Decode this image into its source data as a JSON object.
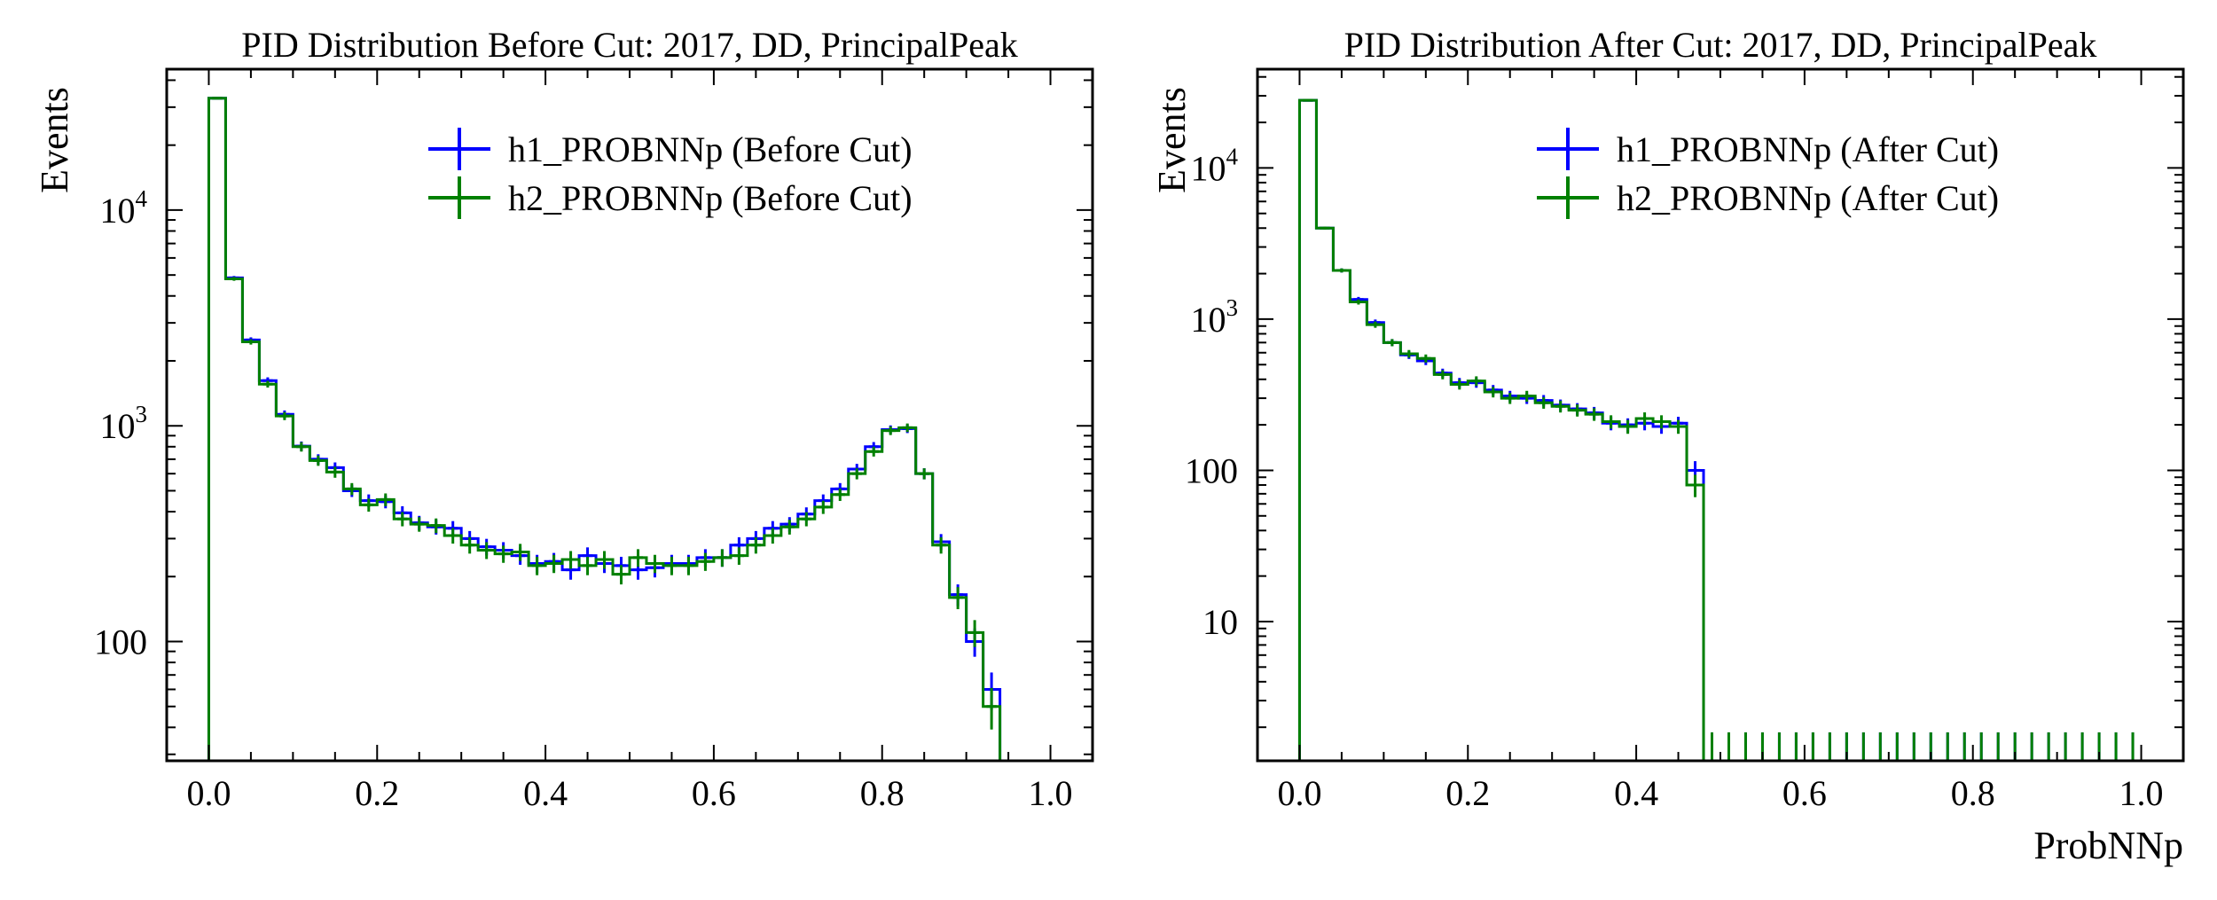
{
  "chart_data": [
    {
      "type": "histogram",
      "title": "PID Distribution Before Cut: 2017, DD, PrincipalPeak",
      "xlabel": "",
      "ylabel": "Events",
      "xlim": [
        -0.05,
        1.05
      ],
      "ylim": [
        28,
        45000
      ],
      "yscale": "log",
      "xticks": [
        "0.0",
        "0.2",
        "0.4",
        "0.6",
        "0.8",
        "1.0"
      ],
      "yticks": [
        {
          "base": "10",
          "exp": "4",
          "value": 10000
        },
        {
          "base": "10",
          "exp": "3",
          "value": 1000
        },
        {
          "base": "100",
          "exp": "",
          "value": 100
        }
      ],
      "legend_position": "top-right",
      "bin_edges_start": 0.0,
      "bin_width": 0.02,
      "series": [
        {
          "name": "h1_PROBNNp (Before Cut)",
          "color": "#0000ff",
          "values": [
            33000,
            4850,
            2500,
            1620,
            1130,
            805,
            700,
            640,
            500,
            450,
            445,
            395,
            355,
            340,
            335,
            300,
            275,
            265,
            250,
            230,
            235,
            215,
            250,
            230,
            225,
            215,
            220,
            230,
            230,
            245,
            245,
            280,
            300,
            335,
            350,
            390,
            450,
            510,
            630,
            800,
            960,
            970,
            600,
            290,
            165,
            100,
            60
          ]
        },
        {
          "name": "h2_PROBNNp (Before Cut)",
          "color": "#008000",
          "values": [
            33000,
            4800,
            2450,
            1560,
            1110,
            800,
            690,
            610,
            510,
            430,
            455,
            370,
            350,
            345,
            310,
            280,
            265,
            255,
            260,
            225,
            230,
            240,
            225,
            240,
            205,
            245,
            230,
            225,
            225,
            235,
            245,
            250,
            280,
            310,
            340,
            370,
            420,
            480,
            600,
            760,
            950,
            980,
            600,
            280,
            160,
            110,
            50
          ]
        }
      ]
    },
    {
      "type": "histogram",
      "title": "PID Distribution After Cut: 2017, DD, PrincipalPeak",
      "xlabel": "ProbNNp",
      "ylabel": "Events",
      "xlim": [
        -0.05,
        1.05
      ],
      "ylim": [
        1.2,
        45000
      ],
      "yscale": "log",
      "xticks": [
        "0.0",
        "0.2",
        "0.4",
        "0.6",
        "0.8",
        "1.0"
      ],
      "yticks": [
        {
          "base": "10",
          "exp": "4",
          "value": 10000
        },
        {
          "base": "10",
          "exp": "3",
          "value": 1000
        },
        {
          "base": "100",
          "exp": "",
          "value": 100
        },
        {
          "base": "10",
          "exp": "",
          "value": 10
        }
      ],
      "legend_position": "top-right",
      "bin_edges_start": 0.0,
      "bin_width": 0.02,
      "series": [
        {
          "name": "h1_PROBNNp (After Cut)",
          "color": "#0000ff",
          "values": [
            28000,
            4000,
            2100,
            1350,
            950,
            700,
            580,
            530,
            440,
            380,
            380,
            340,
            310,
            300,
            290,
            270,
            255,
            240,
            205,
            200,
            205,
            195,
            205,
            100,
            0,
            0,
            0,
            0,
            0,
            0,
            0,
            0,
            0,
            0,
            0,
            0,
            0,
            0,
            0,
            0,
            0,
            0,
            0,
            0,
            0,
            0,
            0,
            0,
            0,
            0
          ]
        },
        {
          "name": "h2_PROBNNp (After Cut)",
          "color": "#008000",
          "values": [
            28000,
            4000,
            2100,
            1300,
            920,
            700,
            590,
            550,
            430,
            370,
            390,
            330,
            300,
            310,
            280,
            265,
            250,
            235,
            210,
            195,
            220,
            210,
            195,
            80,
            0,
            0,
            0,
            0,
            0,
            0,
            0,
            0,
            0,
            0,
            0,
            0,
            0,
            0,
            0,
            0,
            0,
            0,
            0,
            0,
            0,
            0,
            0,
            0,
            0,
            0
          ]
        }
      ]
    }
  ]
}
